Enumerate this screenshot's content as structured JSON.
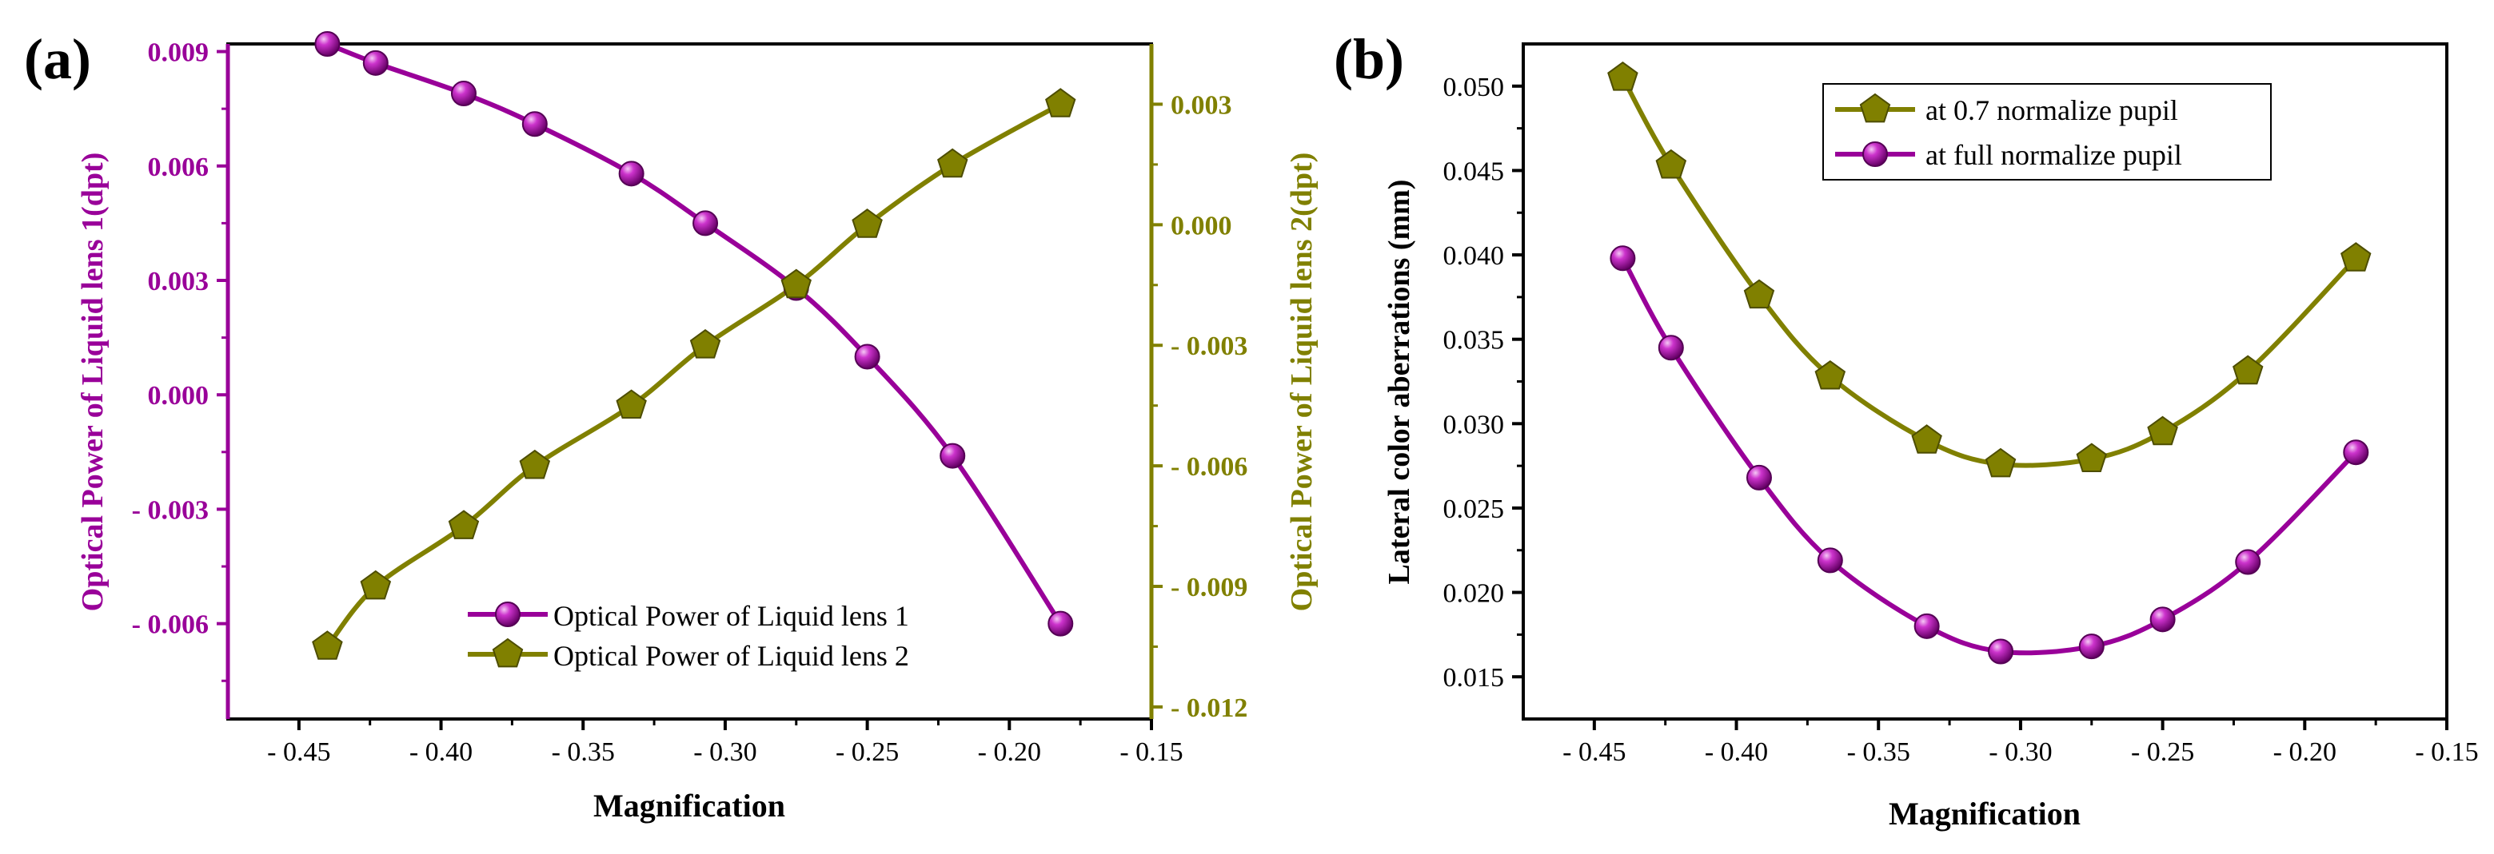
{
  "panel_a": {
    "label": "(a)",
    "colors": {
      "lens1": "#990099",
      "lens2": "#808000",
      "axis": "#000000"
    },
    "chart_data": {
      "type": "line",
      "xlabel": "Magnification",
      "ylabel_left": "Optical Power of  Liquid lens 1(dpt)",
      "ylabel_right": "Optical Power of  Liquid lens 2(dpt)",
      "xlim": [
        -0.475,
        -0.15
      ],
      "ylim_left": [
        -0.0085,
        0.0092
      ],
      "ylim_right": [
        -0.0123,
        0.0045
      ],
      "x_ticks": [
        -0.45,
        -0.4,
        -0.35,
        -0.3,
        -0.25,
        -0.2,
        -0.15
      ],
      "x_tick_labels": [
        "- 0.45",
        "- 0.40",
        "- 0.35",
        "- 0.30",
        "- 0.25",
        "- 0.20",
        "- 0.15"
      ],
      "y_left_ticks": [
        -0.006,
        -0.003,
        0.0,
        0.003,
        0.006,
        0.009
      ],
      "y_left_tick_labels": [
        "- 0.006",
        "- 0.003",
        "0.000",
        "0.003",
        "0.006",
        "0.009"
      ],
      "y_right_ticks": [
        0.003,
        0.0,
        -0.003,
        -0.006,
        -0.009,
        -0.012
      ],
      "y_right_tick_labels": [
        "0.003",
        "0.000",
        "- 0.003",
        "- 0.006",
        "- 0.009",
        "- 0.012"
      ],
      "series": [
        {
          "name": "Optical Power of  Liquid lens 1",
          "axis": "left",
          "marker": "sphere",
          "x": [
            -0.44,
            -0.423,
            -0.392,
            -0.367,
            -0.333,
            -0.307,
            -0.275,
            -0.25,
            -0.22,
            -0.182
          ],
          "y": [
            0.0092,
            0.0087,
            0.0079,
            0.0071,
            0.0058,
            0.0045,
            0.0028,
            0.001,
            -0.0016,
            -0.006
          ]
        },
        {
          "name": "Optical Power of  Liquid lens 2",
          "axis": "right",
          "marker": "pentagon",
          "x": [
            -0.44,
            -0.423,
            -0.392,
            -0.367,
            -0.333,
            -0.307,
            -0.275,
            -0.25,
            -0.22,
            -0.182
          ],
          "y": [
            -0.0105,
            -0.009,
            -0.0075,
            -0.006,
            -0.0045,
            -0.003,
            -0.0015,
            0.0,
            0.0015,
            0.003
          ]
        }
      ],
      "legend_position": "bottom-right"
    }
  },
  "panel_b": {
    "label": "(b)",
    "colors": {
      "p07": "#808000",
      "full": "#990099",
      "axis": "#000000"
    },
    "chart_data": {
      "type": "line",
      "xlabel": "Magnification",
      "ylabel": "Lateral color aberrations (mm)",
      "xlim": [
        -0.475,
        -0.15
      ],
      "ylim": [
        0.0125,
        0.0525
      ],
      "x_ticks": [
        -0.45,
        -0.4,
        -0.35,
        -0.3,
        -0.25,
        -0.2,
        -0.15
      ],
      "x_tick_labels": [
        "- 0.45",
        "- 0.40",
        "- 0.35",
        "- 0.30",
        "- 0.25",
        "- 0.20",
        "- 0.15"
      ],
      "y_ticks": [
        0.015,
        0.02,
        0.025,
        0.03,
        0.035,
        0.04,
        0.045,
        0.05
      ],
      "y_tick_labels": [
        "0.015",
        "0.020",
        "0.025",
        "0.030",
        "0.035",
        "0.040",
        "0.045",
        "0.050"
      ],
      "series": [
        {
          "name": "at 0.7 normalize  pupil",
          "marker": "pentagon",
          "x": [
            -0.44,
            -0.423,
            -0.392,
            -0.367,
            -0.333,
            -0.307,
            -0.275,
            -0.25,
            -0.22,
            -0.182
          ],
          "y": [
            0.0505,
            0.0453,
            0.0376,
            0.0328,
            0.029,
            0.0276,
            0.0279,
            0.0295,
            0.0331,
            0.0398
          ]
        },
        {
          "name": "at full normalize  pupil",
          "marker": "sphere",
          "x": [
            -0.44,
            -0.423,
            -0.392,
            -0.367,
            -0.333,
            -0.307,
            -0.275,
            -0.25,
            -0.22,
            -0.182
          ],
          "y": [
            0.0398,
            0.0345,
            0.0268,
            0.0219,
            0.018,
            0.0165,
            0.0168,
            0.0184,
            0.0218,
            0.0283
          ]
        }
      ],
      "legend_position": "top-center"
    }
  }
}
